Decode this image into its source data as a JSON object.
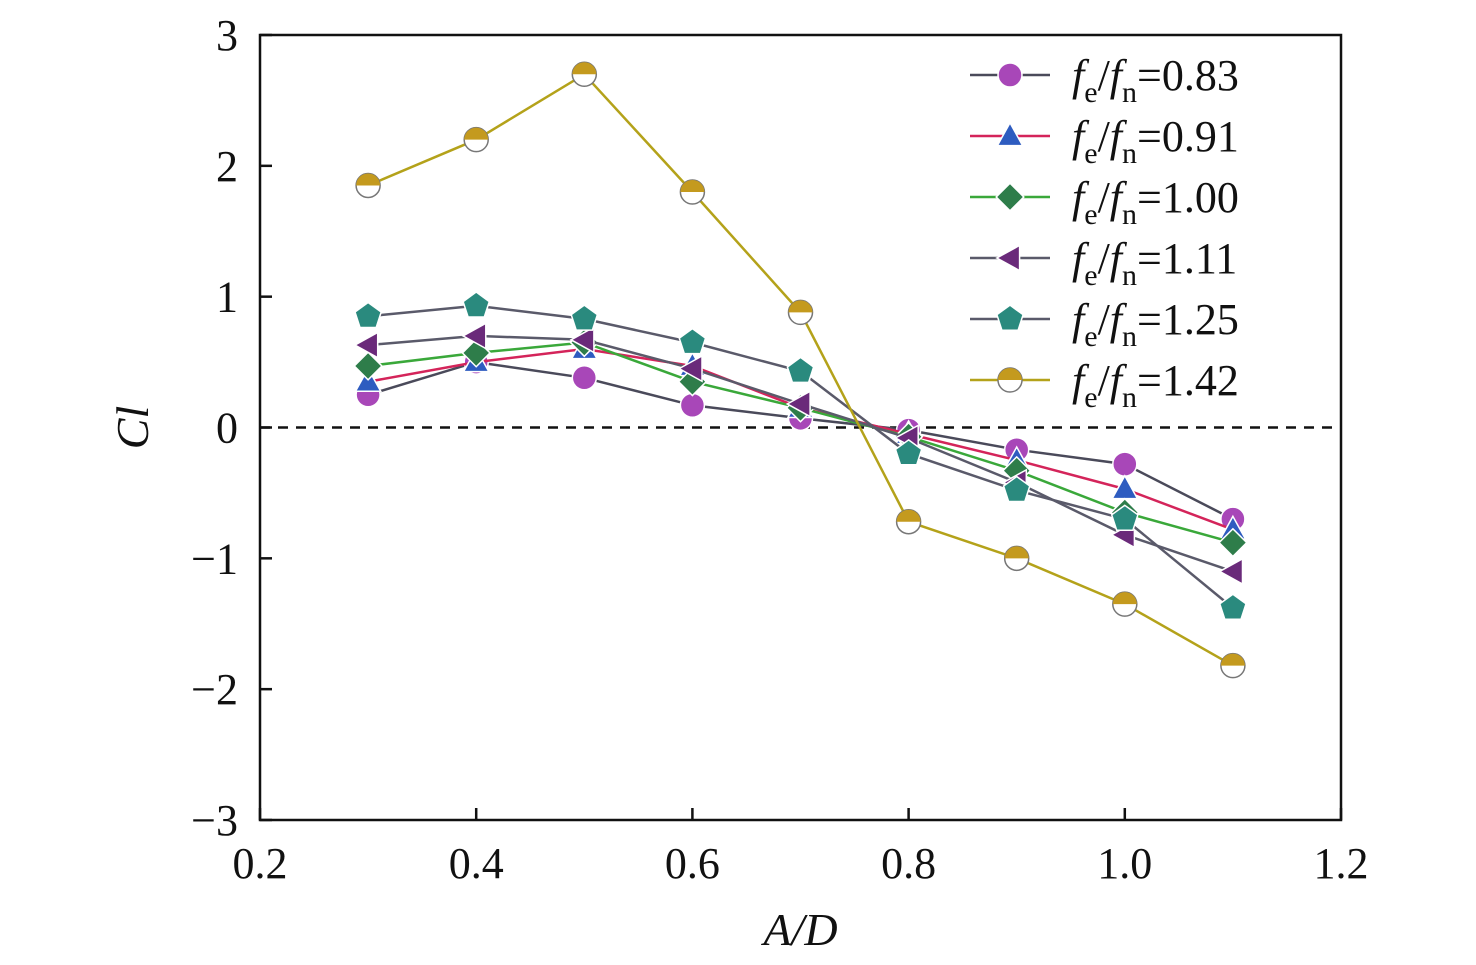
{
  "chart_data": {
    "type": "line",
    "xlabel": "A/D",
    "ylabel": "Cl",
    "xlim": [
      0.2,
      1.2
    ],
    "ylim": [
      -3,
      3
    ],
    "x_ticks": [
      "0.2",
      "0.4",
      "0.6",
      "0.8",
      "1.0",
      "1.2"
    ],
    "y_ticks": [
      "−3",
      "−2",
      "−1",
      "0",
      "1",
      "2",
      "3"
    ],
    "x_tick_values": [
      0.2,
      0.4,
      0.6,
      0.8,
      1.0,
      1.2
    ],
    "y_tick_values": [
      -3,
      -2,
      -1,
      0,
      1,
      2,
      3
    ],
    "reference_line": {
      "y": 0,
      "style": "dashed"
    },
    "grid": false,
    "legend_position": "top-right",
    "x": [
      0.3,
      0.4,
      0.5,
      0.6,
      0.7,
      0.8,
      0.9,
      1.0,
      1.1
    ],
    "series": [
      {
        "name_prefix": "f",
        "sub1": "e",
        "sub2": "n",
        "ratio_text": "=0.83",
        "marker": "circle",
        "line_color": "#4a4a5a",
        "fill": "#a847b8",
        "values": [
          0.25,
          0.5,
          0.38,
          0.17,
          0.07,
          -0.02,
          -0.17,
          -0.28,
          -0.7
        ]
      },
      {
        "name_prefix": "f",
        "sub1": "e",
        "sub2": "n",
        "ratio_text": "=0.91",
        "marker": "triangle",
        "line_color": "#d4245a",
        "fill": "#2e5cc0",
        "values": [
          0.35,
          0.5,
          0.6,
          0.47,
          0.15,
          -0.05,
          -0.25,
          -0.47,
          -0.78
        ]
      },
      {
        "name_prefix": "f",
        "sub1": "e",
        "sub2": "n",
        "ratio_text": "=1.00",
        "marker": "diamond",
        "line_color": "#3aa83a",
        "fill": "#2e7d4a",
        "values": [
          0.47,
          0.57,
          0.65,
          0.35,
          0.15,
          -0.07,
          -0.33,
          -0.65,
          -0.88
        ]
      },
      {
        "name_prefix": "f",
        "sub1": "e",
        "sub2": "n",
        "ratio_text": "=1.11",
        "marker": "triangle-left",
        "line_color": "#5a5a6a",
        "fill": "#6a2a7a",
        "values": [
          0.63,
          0.7,
          0.67,
          0.45,
          0.18,
          -0.08,
          -0.42,
          -0.82,
          -1.1
        ]
      },
      {
        "name_prefix": "f",
        "sub1": "e",
        "sub2": "n",
        "ratio_text": "=1.25",
        "marker": "pentagon",
        "line_color": "#5a5a6a",
        "fill": "#2a8a7e",
        "values": [
          0.85,
          0.93,
          0.83,
          0.65,
          0.43,
          -0.2,
          -0.48,
          -0.7,
          -1.38
        ]
      },
      {
        "name_prefix": "f",
        "sub1": "e",
        "sub2": "n",
        "ratio_text": "=1.42",
        "marker": "half-circle",
        "line_color": "#b4a21a",
        "fill": "#c49a1e",
        "values": [
          1.85,
          2.2,
          2.7,
          1.8,
          0.88,
          -0.72,
          -1.0,
          -1.35,
          -1.82
        ]
      }
    ]
  }
}
